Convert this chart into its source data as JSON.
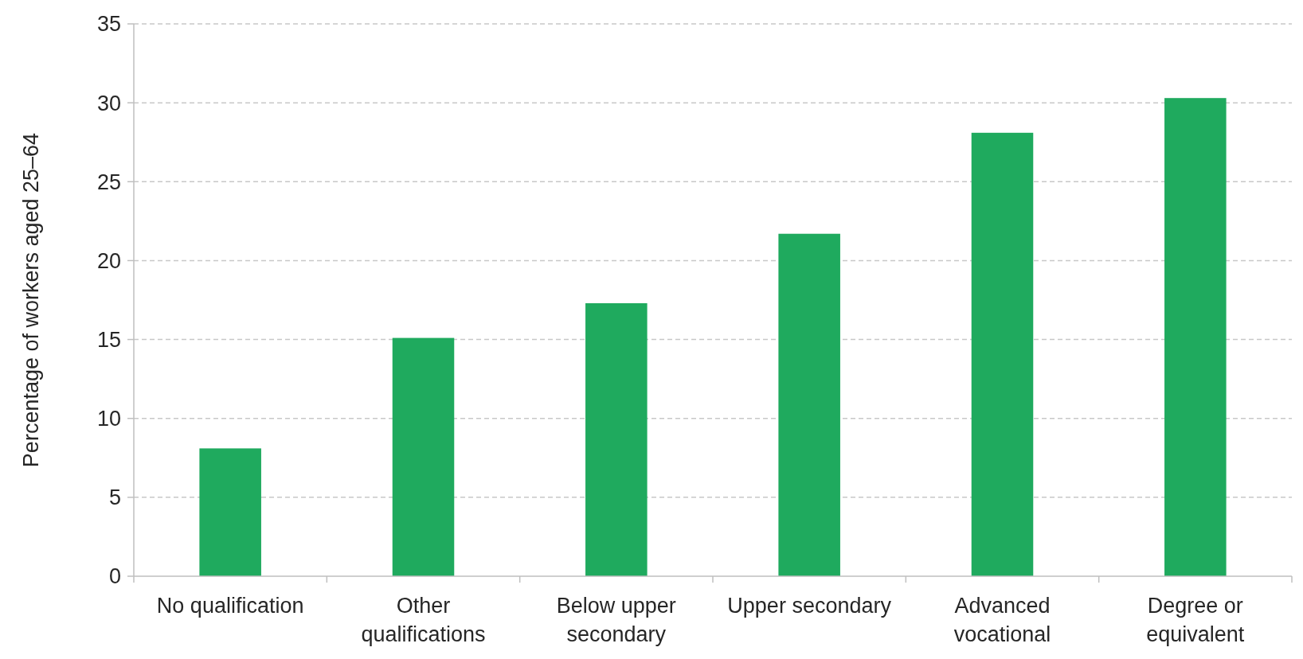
{
  "chart_data": {
    "type": "bar",
    "ylabel": "Percentage of workers aged 25–64",
    "categories": [
      "No qualification",
      "Other qualifications",
      "Below upper secondary",
      "Upper secondary",
      "Advanced vocational",
      "Degree or equivalent"
    ],
    "values": [
      8.1,
      15.1,
      17.3,
      21.7,
      28.1,
      30.3
    ],
    "color": "#1faa5e",
    "ylim": [
      0,
      35
    ],
    "yticks": [
      0,
      5,
      10,
      15,
      20,
      25,
      30,
      35
    ],
    "grid": "y"
  }
}
